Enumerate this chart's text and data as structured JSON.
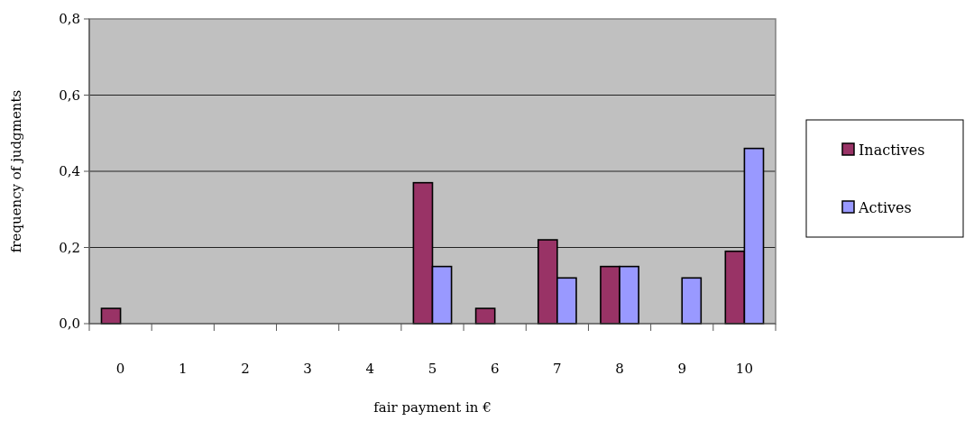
{
  "chart_data": {
    "type": "bar",
    "xlabel": "fair payment in €",
    "ylabel": "frequency of judgments",
    "categories": [
      "0",
      "1",
      "2",
      "3",
      "4",
      "5",
      "6",
      "7",
      "8",
      "9",
      "10"
    ],
    "series": [
      {
        "name": "Inactives",
        "color": "#993366",
        "values": [
          0.04,
          0,
          0,
          0,
          0,
          0.37,
          0.04,
          0.22,
          0.15,
          0,
          0.19
        ]
      },
      {
        "name": "Actives",
        "color": "#9999ff",
        "values": [
          0,
          0,
          0,
          0,
          0,
          0.15,
          0,
          0.12,
          0.15,
          0.12,
          0.46
        ]
      }
    ],
    "ylim": [
      0,
      0.8
    ],
    "yticks": [
      {
        "value": 0,
        "label": "0,0"
      },
      {
        "value": 0.2,
        "label": "0,2"
      },
      {
        "value": 0.4,
        "label": "0,4"
      },
      {
        "value": 0.6,
        "label": "0,6"
      },
      {
        "value": 0.8,
        "label": "0,8"
      }
    ],
    "grid": "y",
    "legend": "right"
  }
}
